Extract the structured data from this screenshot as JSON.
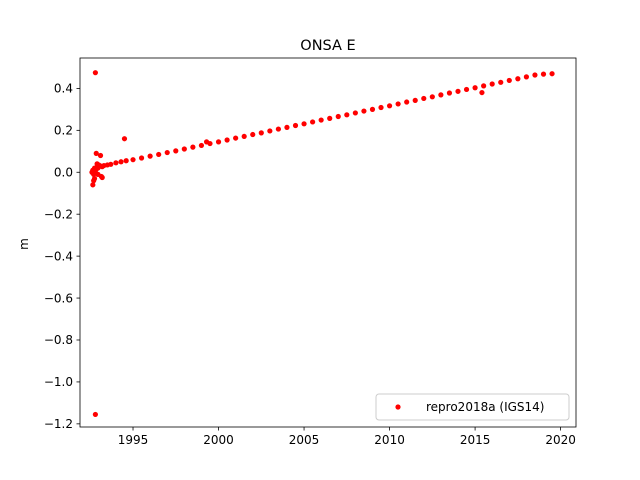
{
  "chart_data": {
    "type": "scatter",
    "title": "ONSA E",
    "xlabel": "",
    "ylabel": "m",
    "xlim": [
      1991.9,
      2020.9
    ],
    "ylim": [
      -1.215,
      0.545
    ],
    "xticks": [
      1995,
      2000,
      2005,
      2010,
      2015,
      2020
    ],
    "xtick_labels": [
      "1995",
      "2000",
      "2005",
      "2010",
      "2015",
      "2020"
    ],
    "yticks": [
      0.4,
      0.2,
      0.0,
      -0.2,
      -0.4,
      -0.6,
      -0.8,
      -1.0,
      -1.2
    ],
    "ytick_labels": [
      "0.4",
      "0.2",
      "0.0",
      "−0.2",
      "−0.4",
      "−0.6",
      "−0.8",
      "−1.0",
      "−1.2"
    ],
    "grid": false,
    "legend": {
      "position": "lower-right",
      "entries": [
        "repro2018a (IGS14)"
      ]
    },
    "series": [
      {
        "name": "repro2018a (IGS14)",
        "color": "#ff0000",
        "marker": "circle",
        "x": [
          1992.6,
          1992.65,
          1992.7,
          1992.75,
          1992.8,
          1992.85,
          1992.9,
          1992.95,
          1993.0,
          1993.1,
          1993.2,
          1993.3,
          1993.5,
          1993.7,
          1994.0,
          1994.3,
          1994.6,
          1995.0,
          1995.5,
          1996.0,
          1996.5,
          1997.0,
          1997.5,
          1998.0,
          1998.5,
          1999.0,
          1999.5,
          2000.0,
          2000.5,
          2001.0,
          2001.5,
          2002.0,
          2002.5,
          2003.0,
          2003.5,
          2004.0,
          2004.5,
          2005.0,
          2005.5,
          2006.0,
          2006.5,
          2007.0,
          2007.5,
          2008.0,
          2008.5,
          2009.0,
          2009.5,
          2010.0,
          2010.5,
          2011.0,
          2011.5,
          2012.0,
          2012.5,
          2013.0,
          2013.5,
          2014.0,
          2014.5,
          2015.0,
          2015.5,
          2016.0,
          2016.5,
          2017.0,
          2017.5,
          2018.0,
          2018.5,
          2019.0,
          2019.5,
          1992.8,
          1992.8,
          1992.85,
          1993.1,
          1994.5,
          1999.3,
          1992.65,
          1992.7,
          1992.75,
          1993.15,
          1993.2,
          1992.9,
          1992.95,
          1993.0,
          2015.4
        ],
        "y": [
          0.0,
          0.01,
          -0.01,
          0.02,
          0.0,
          0.015,
          0.025,
          0.02,
          0.028,
          0.03,
          0.027,
          0.032,
          0.035,
          0.038,
          0.045,
          0.05,
          0.055,
          0.06,
          0.068,
          0.077,
          0.085,
          0.094,
          0.102,
          0.111,
          0.12,
          0.128,
          0.137,
          0.145,
          0.154,
          0.163,
          0.171,
          0.18,
          0.188,
          0.197,
          0.206,
          0.214,
          0.223,
          0.231,
          0.24,
          0.249,
          0.257,
          0.266,
          0.274,
          0.283,
          0.292,
          0.3,
          0.309,
          0.317,
          0.326,
          0.335,
          0.343,
          0.352,
          0.36,
          0.369,
          0.378,
          0.386,
          0.395,
          0.403,
          0.412,
          0.421,
          0.429,
          0.438,
          0.446,
          0.455,
          0.464,
          0.468,
          0.47,
          0.475,
          -1.155,
          0.09,
          0.08,
          0.16,
          0.145,
          -0.06,
          -0.04,
          -0.03,
          -0.02,
          -0.025,
          0.04,
          -0.01,
          0.035,
          0.38
        ]
      }
    ]
  }
}
